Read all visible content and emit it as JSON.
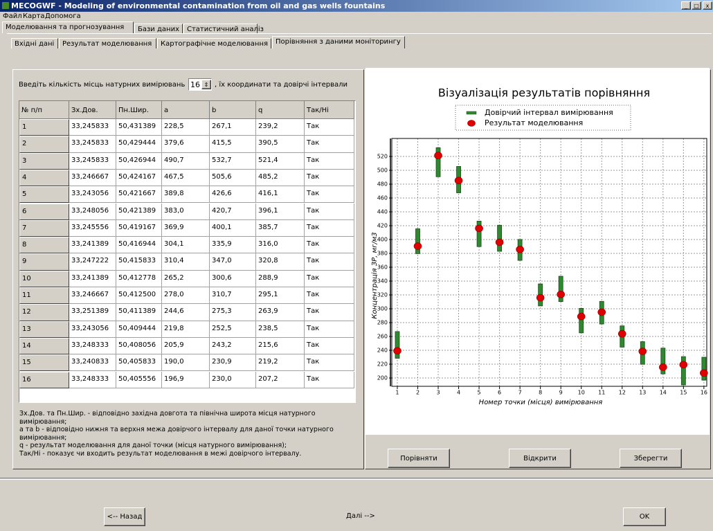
{
  "window": {
    "title": "MECOGWF - Modeling of environmental contamination from oil and gas wells fountains"
  },
  "menu": [
    "Файл",
    "Карта",
    "Допомога"
  ],
  "tabs": [
    "Моделювання та прогнозування",
    "Бази даних",
    "Статистичний аналіз"
  ],
  "subtabs": [
    "Вхідні дані",
    "Результат моделювання",
    "Картографічне моделювання",
    "Порівняння з даними моніторингу"
  ],
  "input": {
    "label": "Введіть кількість місць натурних вимірювань",
    "count": 16,
    "suffix": ", їх координати та довірчі інтервали"
  },
  "table": {
    "columns": [
      "№ п/п",
      "Зх.Дов.",
      "Пн.Шир.",
      "a",
      "b",
      "q",
      "Так/Ні"
    ],
    "rows": [
      [
        "1",
        "33,245833",
        "50,431389",
        "228,5",
        "267,1",
        "239,2",
        "Так"
      ],
      [
        "2",
        "33,245833",
        "50,429444",
        "379,6",
        "415,5",
        "390,5",
        "Так"
      ],
      [
        "3",
        "33,245833",
        "50,426944",
        "490,7",
        "532,7",
        "521,4",
        "Так"
      ],
      [
        "4",
        "33,246667",
        "50,424167",
        "467,5",
        "505,6",
        "485,2",
        "Так"
      ],
      [
        "5",
        "33,243056",
        "50,421667",
        "389,8",
        "426,6",
        "416,1",
        "Так"
      ],
      [
        "6",
        "33,248056",
        "50,421389",
        "383,0",
        "420,7",
        "396,1",
        "Так"
      ],
      [
        "7",
        "33,245556",
        "50,419167",
        "369,9",
        "400,1",
        "385,7",
        "Так"
      ],
      [
        "8",
        "33,241389",
        "50,416944",
        "304,1",
        "335,9",
        "316,0",
        "Так"
      ],
      [
        "9",
        "33,247222",
        "50,415833",
        "310,4",
        "347,0",
        "320,8",
        "Так"
      ],
      [
        "10",
        "33,241389",
        "50,412778",
        "265,2",
        "300,6",
        "288,9",
        "Так"
      ],
      [
        "11",
        "33,246667",
        "50,412500",
        "278,0",
        "310,7",
        "295,1",
        "Так"
      ],
      [
        "12",
        "33,251389",
        "50,411389",
        "244,6",
        "275,3",
        "263,9",
        "Так"
      ],
      [
        "13",
        "33,243056",
        "50,409444",
        "219,8",
        "252,5",
        "238,5",
        "Так"
      ],
      [
        "14",
        "33,248333",
        "50,408056",
        "205,9",
        "243,2",
        "215,6",
        "Так"
      ],
      [
        "15",
        "33,240833",
        "50,405833",
        "190,0",
        "230,9",
        "219,2",
        "Так"
      ],
      [
        "16",
        "33,248333",
        "50,405556",
        "196,9",
        "230,0",
        "207,2",
        "Так"
      ]
    ]
  },
  "notes": [
    "Зх.Дов. та Пн.Шир. - відповідно західна довгота та північна широта місця натурного вимірювання;",
    "a та b - відповідно нижня та верхня межа довірчого інтервалу для даної точки натурного вимірювання;",
    "q - результат моделювання для даної точки (місця натурного вимірювання);",
    "Так/Ні - показує чи входить результат моделювання в межі довірчого інтервалу."
  ],
  "chart_buttons": [
    "Порівняти",
    "Відкрити",
    "Зберегти"
  ],
  "nav": [
    "<-- Назад",
    "Далі -->",
    "OK"
  ],
  "chart_data": {
    "type": "errorbar",
    "title": "Візуалізація результатів порівняння",
    "x_label": "Номер точки (місця) вимірювання",
    "y_label": "Концентрація ЗР, мг/м3",
    "x": [
      1,
      2,
      3,
      4,
      5,
      6,
      7,
      8,
      9,
      10,
      11,
      12,
      13,
      14,
      15,
      16
    ],
    "xlim": [
      0.73,
      16.14
    ],
    "xticks": [
      1,
      2,
      3,
      4,
      5,
      6,
      7,
      8,
      9,
      10,
      11,
      12,
      13,
      14,
      15,
      16
    ],
    "ylim": [
      188,
      546
    ],
    "yticks": [
      200,
      220,
      240,
      260,
      280,
      300,
      320,
      340,
      360,
      380,
      400,
      420,
      440,
      460,
      480,
      500,
      520
    ],
    "grid": true,
    "legend": "top",
    "series": [
      {
        "name": "Довірчий інтервал вимірювання",
        "color": "#2f8a2f",
        "low": [
          228.5,
          379.6,
          490.7,
          467.5,
          389.8,
          383.0,
          369.9,
          304.1,
          310.4,
          265.2,
          278.0,
          244.6,
          219.8,
          205.9,
          190.0,
          196.9
        ],
        "high": [
          267.1,
          415.5,
          532.7,
          505.6,
          426.6,
          420.7,
          400.1,
          335.9,
          347.0,
          300.6,
          310.7,
          275.3,
          252.5,
          243.2,
          230.9,
          230.0
        ]
      },
      {
        "name": "Результат моделювання",
        "color": "#e00000",
        "values": [
          239.2,
          390.5,
          521.4,
          485.2,
          416.1,
          396.1,
          385.7,
          316.0,
          320.8,
          288.9,
          295.1,
          263.9,
          238.5,
          215.6,
          219.2,
          207.2
        ]
      }
    ]
  }
}
